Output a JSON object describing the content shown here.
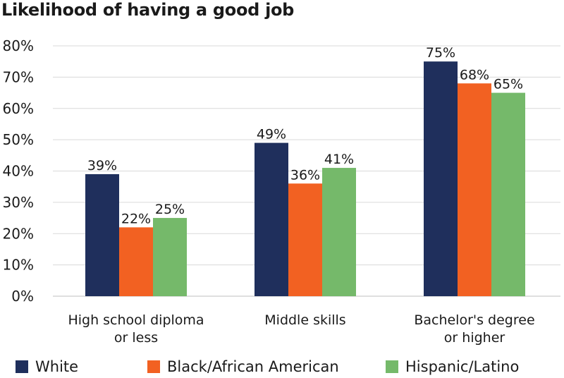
{
  "chart_data": {
    "type": "bar",
    "title": "Likelihood of having a good job",
    "categories": [
      [
        "High school diploma",
        "or less"
      ],
      [
        "Middle skills"
      ],
      [
        "Bachelor's degree",
        "or higher"
      ]
    ],
    "series": [
      {
        "name": "White",
        "color": "#1f2f5c",
        "values": [
          39,
          49,
          75
        ]
      },
      {
        "name": "Black/African American",
        "color": "#f26122",
        "values": [
          22,
          36,
          68
        ]
      },
      {
        "name": "Hispanic/Latino",
        "color": "#75b96a",
        "values": [
          25,
          41,
          65
        ]
      }
    ],
    "value_suffix": "%",
    "ylim": [
      0,
      80
    ],
    "yticks": [
      "0%",
      "10%",
      "20%",
      "30%",
      "40%",
      "50%",
      "60%",
      "70%",
      "80%"
    ],
    "grid": true,
    "legend_position": "bottom"
  }
}
